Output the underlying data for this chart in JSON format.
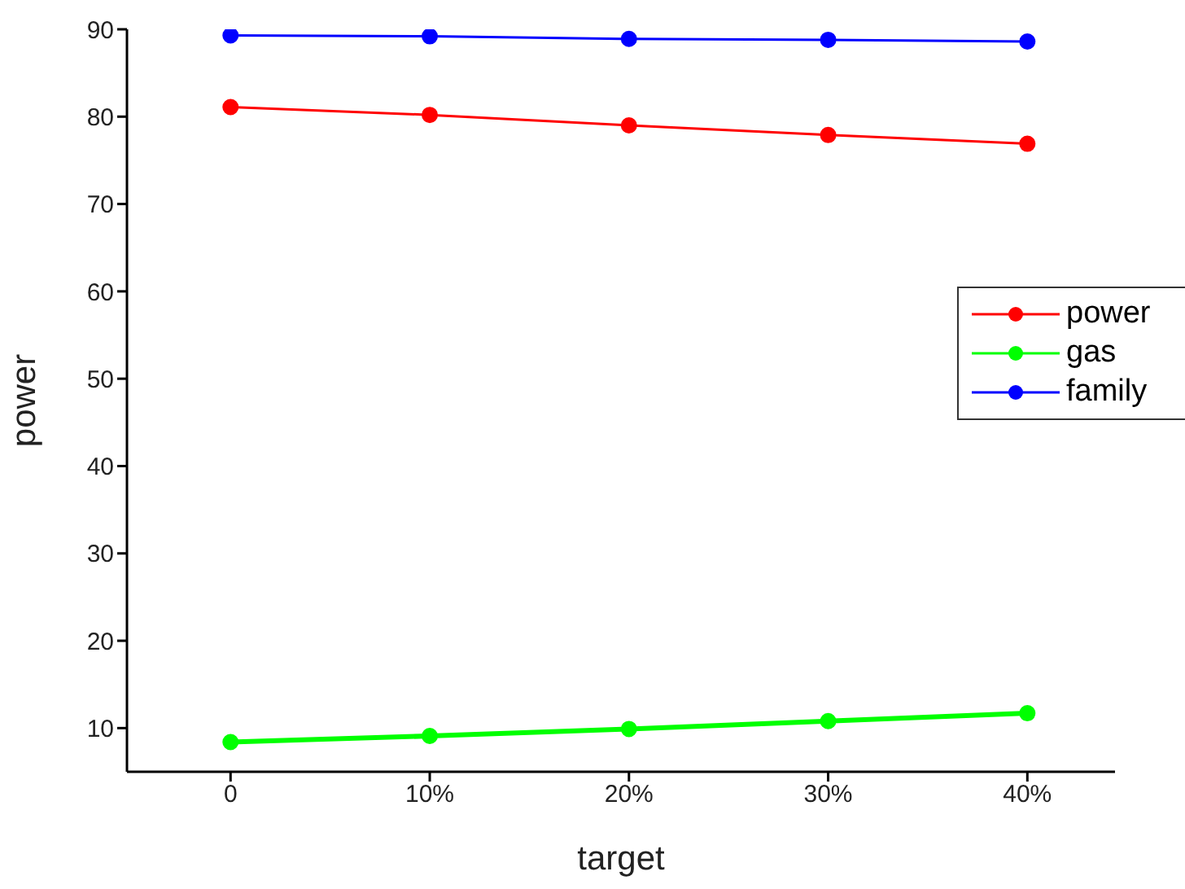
{
  "chart_data": {
    "type": "line",
    "xlabel": "target",
    "ylabel": "power",
    "x": [
      0,
      10,
      20,
      30,
      40
    ],
    "series": [
      {
        "name": "power",
        "color": "#ff0000",
        "values": [
          81.1,
          80.2,
          79.0,
          77.9,
          76.9
        ]
      },
      {
        "name": "gas",
        "color": "#00ff00",
        "values": [
          8.4,
          9.1,
          9.9,
          10.8,
          11.7
        ]
      },
      {
        "name": "family",
        "color": "#0000ff",
        "values": [
          89.3,
          89.2,
          88.9,
          88.8,
          88.6
        ]
      }
    ],
    "xlim": [
      -5.2,
      44.4
    ],
    "xticks": [
      0,
      {
        "value": 10,
        "label": "10%"
      },
      {
        "value": 20,
        "label": "20%"
      },
      {
        "value": 30,
        "label": "30%"
      },
      {
        "value": 40,
        "label": "40%"
      }
    ],
    "ylim": [
      5,
      90
    ],
    "yticks": [
      10,
      20,
      30,
      40,
      50,
      60,
      70,
      80,
      90
    ],
    "grid": false,
    "legend": "right",
    "marker": "circle",
    "line_style": "solid"
  }
}
